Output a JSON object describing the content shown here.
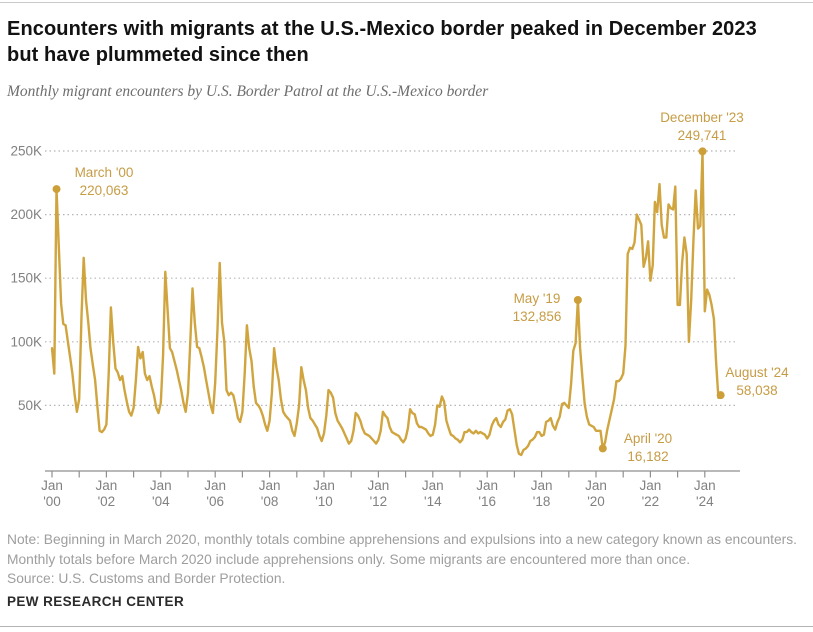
{
  "page": {
    "title_line1": "Encounters with migrants at the U.S.-Mexico border peaked in December 2023",
    "title_line2": "but have plummeted since then",
    "subtitle": "Monthly migrant encounters by U.S. Border Patrol at the U.S.-Mexico border",
    "note_text": "Note: Beginning in March 2020, monthly totals combine apprehensions and expulsions into a new category known as encounters. Monthly totals before March 2020 include apprehensions only. Some migrants are encountered more than once.",
    "source_text": "Source: U.S. Customs and Border Protection.",
    "brand": "PEW RESEARCH CENTER"
  },
  "colors": {
    "line": "#D0A53F",
    "dot": "#CD9F38",
    "annotation_text": "#C69C45",
    "grid": "#b5b5b5",
    "axis": "#8f8f8f",
    "tick_label": "#818181"
  },
  "chart_data": {
    "type": "line",
    "title": "Monthly migrant encounters by U.S. Border Patrol at the U.S.-Mexico border",
    "x_unit": "month",
    "x_start": "2000-01",
    "x_end": "2024-08",
    "ylim": [
      0,
      262000
    ],
    "grid": "dotted-horizontal",
    "legend": "none",
    "y_ticks": [
      {
        "value": 50000,
        "label": "50K"
      },
      {
        "value": 100000,
        "label": "100K"
      },
      {
        "value": 150000,
        "label": "150K"
      },
      {
        "value": 200000,
        "label": "200K"
      },
      {
        "value": 250000,
        "label": "250K"
      }
    ],
    "x_tick_labels": [
      {
        "year": 2000,
        "line1": "Jan",
        "line2": "'00"
      },
      {
        "year": 2002,
        "line1": "Jan",
        "line2": "'02"
      },
      {
        "year": 2004,
        "line1": "Jan",
        "line2": "'04"
      },
      {
        "year": 2006,
        "line1": "Jan",
        "line2": "'06"
      },
      {
        "year": 2008,
        "line1": "Jan",
        "line2": "'08"
      },
      {
        "year": 2010,
        "line1": "Jan",
        "line2": "'10"
      },
      {
        "year": 2012,
        "line1": "Jan",
        "line2": "'12"
      },
      {
        "year": 2014,
        "line1": "Jan",
        "line2": "'14"
      },
      {
        "year": 2016,
        "line1": "Jan",
        "line2": "'16"
      },
      {
        "year": 2018,
        "line1": "Jan",
        "line2": "'18"
      },
      {
        "year": 2020,
        "line1": "Jan",
        "line2": "'20"
      },
      {
        "year": 2022,
        "line1": "Jan",
        "line2": "'22"
      },
      {
        "year": 2024,
        "line1": "Jan",
        "line2": "'24"
      }
    ],
    "series": [
      {
        "name": "Monthly migrant encounters",
        "start_month": "2000-01",
        "values": [
          95000,
          75000,
          220063,
          175000,
          130000,
          114000,
          113000,
          100000,
          88000,
          75000,
          58000,
          45000,
          55000,
          120000,
          166000,
          133000,
          115000,
          95000,
          82000,
          70000,
          50000,
          30000,
          29000,
          31000,
          35000,
          75000,
          127000,
          100000,
          79000,
          76000,
          70000,
          73000,
          62000,
          53000,
          45000,
          42000,
          48000,
          70000,
          96000,
          87000,
          92000,
          75000,
          70000,
          73000,
          65000,
          58000,
          48000,
          44000,
          52000,
          90000,
          155000,
          125000,
          95000,
          92000,
          85000,
          78000,
          70000,
          62000,
          52000,
          45000,
          60000,
          100000,
          142000,
          115000,
          96000,
          95000,
          88000,
          80000,
          70000,
          60000,
          50000,
          44000,
          68000,
          110000,
          162000,
          115000,
          100000,
          62000,
          58000,
          60000,
          58000,
          50000,
          40000,
          37000,
          45000,
          75000,
          113000,
          95000,
          85000,
          65000,
          52000,
          50000,
          47000,
          42000,
          35000,
          30000,
          38000,
          60000,
          95000,
          80000,
          70000,
          55000,
          45000,
          42000,
          40000,
          38000,
          30000,
          26000,
          36000,
          50000,
          80000,
          70000,
          62000,
          48000,
          40000,
          38000,
          35000,
          32000,
          26000,
          22000,
          28000,
          42000,
          62000,
          60000,
          56000,
          44000,
          38000,
          35000,
          32000,
          28000,
          24000,
          20000,
          22000,
          30000,
          44000,
          42000,
          38000,
          32000,
          28000,
          27000,
          26000,
          24000,
          22000,
          20000,
          23000,
          30000,
          45000,
          42000,
          40000,
          33000,
          29000,
          28000,
          27000,
          26000,
          23000,
          21000,
          24000,
          32000,
          47000,
          44000,
          43000,
          36000,
          33000,
          33000,
          32000,
          31000,
          28000,
          26000,
          27000,
          35000,
          50000,
          49000,
          57000,
          53000,
          38000,
          32000,
          27000,
          26000,
          24000,
          23000,
          21000,
          23000,
          29000,
          29000,
          31000,
          29000,
          28000,
          30000,
          28000,
          29000,
          28000,
          27000,
          24000,
          27000,
          34000,
          38000,
          40000,
          35000,
          33000,
          37000,
          39000,
          46000,
          47000,
          43000,
          31000,
          19000,
          12000,
          11000,
          15000,
          16000,
          18000,
          22000,
          23000,
          25000,
          29000,
          29000,
          26000,
          27000,
          37000,
          38000,
          40000,
          34000,
          31000,
          37000,
          41000,
          51000,
          52000,
          50000,
          48000,
          67000,
          93000,
          99000,
          132856,
          95000,
          72000,
          51000,
          41000,
          35000,
          34000,
          33000,
          30000,
          30000,
          30000,
          16182,
          21000,
          31000,
          39000,
          47000,
          55000,
          69000,
          69000,
          71000,
          75000,
          97000,
          169000,
          174000,
          173000,
          178000,
          200000,
          196000,
          192000,
          159000,
          166000,
          179000,
          148000,
          160000,
          210000,
          202000,
          224000,
          192000,
          182000,
          182000,
          208000,
          205000,
          204000,
          222000,
          129000,
          129000,
          162000,
          182000,
          169000,
          100000,
          133000,
          181000,
          219000,
          189000,
          191000,
          249741,
          124000,
          141000,
          137000,
          129000,
          118000,
          84000,
          56000,
          58038
        ]
      }
    ],
    "annotations": [
      {
        "month_index": 2,
        "date_label": "March '00",
        "value_label": "220,063",
        "value": 220063
      },
      {
        "month_index": 232,
        "date_label": "May '19",
        "value_label": "132,856",
        "value": 132856
      },
      {
        "month_index": 243,
        "date_label": "April '20",
        "value_label": "16,182",
        "value": 16182
      },
      {
        "month_index": 287,
        "date_label": "December '23",
        "value_label": "249,741",
        "value": 249741
      },
      {
        "month_index": 295,
        "date_label": "August '24",
        "value_label": "58,038",
        "value": 58038
      }
    ]
  }
}
